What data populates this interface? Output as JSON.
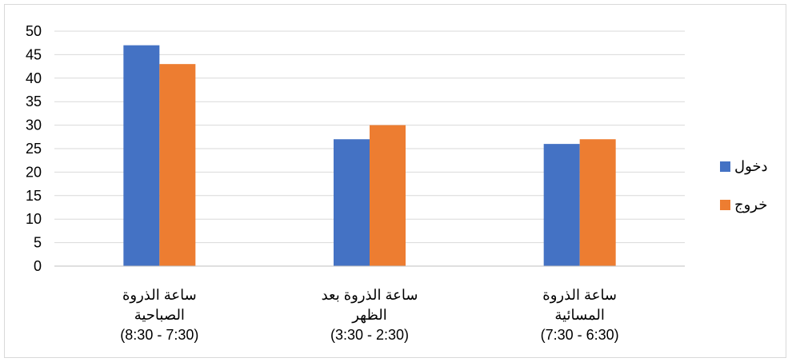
{
  "chart_data": {
    "type": "bar",
    "title": "",
    "xlabel": "",
    "ylabel": "",
    "ylim": [
      0,
      50
    ],
    "yticks": [
      0,
      5,
      10,
      15,
      20,
      25,
      30,
      35,
      40,
      45,
      50
    ],
    "grid": true,
    "legend_position": "right",
    "categories": [
      [
        "ساعة الذروة",
        "الصباحية",
        "(8:30 - 7:30)"
      ],
      [
        "ساعة الذروة بعد",
        "الظهر",
        "(3:30 - 2:30)"
      ],
      [
        "ساعة الذروة",
        "المسائية",
        "(7:30 - 6:30)"
      ]
    ],
    "series": [
      {
        "name": "دخول",
        "color": "#4472C4",
        "values": [
          47,
          27,
          26
        ]
      },
      {
        "name": "خروج",
        "color": "#ED7D31",
        "values": [
          43,
          30,
          27
        ]
      }
    ]
  }
}
